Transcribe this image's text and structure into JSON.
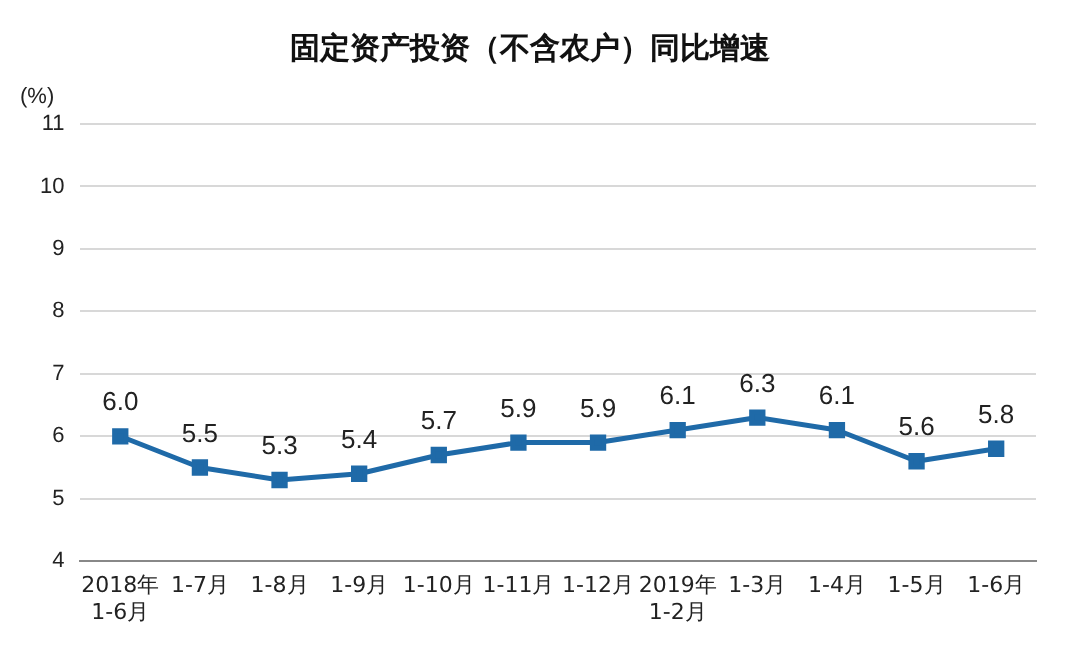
{
  "chart_data": {
    "type": "line",
    "title": "固定资产投资（不含农户）同比增速",
    "ylabel": "(%)",
    "categories": [
      "2018年\n1-6月",
      "1-7月",
      "1-8月",
      "1-9月",
      "1-10月",
      "1-11月",
      "1-12月",
      "2019年\n1-2月",
      "1-3月",
      "1-4月",
      "1-5月",
      "1-6月"
    ],
    "series": [
      {
        "color": "#1f6aa8",
        "values": [
          6.0,
          5.5,
          5.3,
          5.4,
          5.7,
          5.9,
          5.9,
          6.1,
          6.3,
          6.1,
          5.6,
          5.8
        ],
        "value_labels": [
          "6.0",
          "5.5",
          "5.3",
          "5.4",
          "5.7",
          "5.9",
          "5.9",
          "6.1",
          "6.3",
          "6.1",
          "5.6",
          "5.8"
        ]
      }
    ],
    "ylim": [
      4,
      11
    ],
    "yticks": [
      4,
      5,
      6,
      7,
      8,
      9,
      10,
      11
    ],
    "grid": "y",
    "legend": false,
    "marker": "square",
    "line_style": "solid"
  }
}
